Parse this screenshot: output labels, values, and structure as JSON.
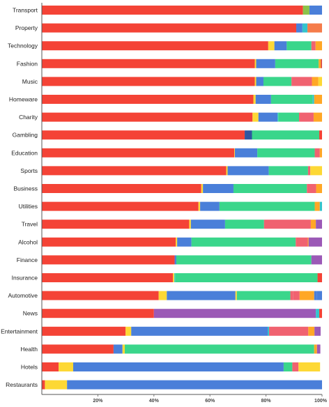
{
  "chart_data": {
    "type": "bar",
    "orientation": "horizontal",
    "stacked": true,
    "title": "",
    "xlabel": "",
    "ylabel": "",
    "xlim": [
      0,
      100
    ],
    "x_ticks": [
      {
        "value": 20,
        "label": "20%"
      },
      {
        "value": 40,
        "label": "40%"
      },
      {
        "value": 60,
        "label": "60%"
      },
      {
        "value": 80,
        "label": "80%"
      },
      {
        "value": 100,
        "label": "100%"
      }
    ],
    "grid": false,
    "legend": "none",
    "colors": [
      "#f44336",
      "#fdd835",
      "#8bc34a",
      "#4a7fd9",
      "#2f56a0",
      "#3ad68b",
      "#33c4cc",
      "#f06270",
      "#ffa726",
      "#9b59b6",
      "#f57c4a",
      "#d84343"
    ],
    "categories": [
      "Transport",
      "Property",
      "Technology",
      "Fashion",
      "Music",
      "Homeware",
      "Charity",
      "Gambling",
      "Education",
      "Sports",
      "Business",
      "Utilities",
      "Travel",
      "Alcohol",
      "Finance",
      "Insurance",
      "Automotive",
      "News",
      "Entertainment",
      "Health",
      "Hotels",
      "Restaurants"
    ],
    "bars": [
      [
        [
          93.2,
          0
        ],
        [
          2.3,
          2
        ],
        [
          4.5,
          3
        ]
      ],
      [
        [
          90.8,
          0
        ],
        [
          2.2,
          3
        ],
        [
          1.8,
          6
        ],
        [
          5.2,
          10
        ]
      ],
      [
        [
          80.8,
          0
        ],
        [
          2.2,
          1
        ],
        [
          4.4,
          3
        ],
        [
          8.8,
          5
        ],
        [
          1.5,
          7
        ],
        [
          2.3,
          8
        ]
      ],
      [
        [
          76.0,
          0
        ],
        [
          0.5,
          1
        ],
        [
          6.8,
          3
        ],
        [
          15.5,
          5
        ],
        [
          0.8,
          8
        ],
        [
          0.4,
          11
        ]
      ],
      [
        [
          76.0,
          0
        ],
        [
          0.5,
          1
        ],
        [
          2.6,
          3
        ],
        [
          10.0,
          5
        ],
        [
          7.3,
          7
        ],
        [
          2.3,
          8
        ],
        [
          1.3,
          1
        ]
      ],
      [
        [
          75.5,
          0
        ],
        [
          0.8,
          1
        ],
        [
          5.5,
          3
        ],
        [
          14.8,
          5
        ],
        [
          0.6,
          6
        ],
        [
          2.8,
          8
        ]
      ],
      [
        [
          75.2,
          0
        ],
        [
          2.1,
          1
        ],
        [
          6.8,
          3
        ],
        [
          0.3,
          6
        ],
        [
          7.4,
          5
        ],
        [
          5.2,
          7
        ],
        [
          3.0,
          8
        ]
      ],
      [
        [
          72.4,
          0
        ],
        [
          2.6,
          4
        ],
        [
          24.0,
          5
        ],
        [
          1.0,
          0
        ]
      ],
      [
        [
          68.7,
          0
        ],
        [
          0.2,
          1
        ],
        [
          8.0,
          3
        ],
        [
          20.5,
          5
        ],
        [
          1.8,
          7
        ],
        [
          0.8,
          8
        ]
      ],
      [
        [
          65.8,
          0
        ],
        [
          0.5,
          1
        ],
        [
          14.7,
          3
        ],
        [
          14.0,
          5
        ],
        [
          0.8,
          7
        ],
        [
          4.2,
          1
        ]
      ],
      [
        [
          56.9,
          0
        ],
        [
          0.6,
          1
        ],
        [
          10.9,
          3
        ],
        [
          26.2,
          5
        ],
        [
          3.3,
          7
        ],
        [
          2.1,
          8
        ]
      ],
      [
        [
          55.9,
          0
        ],
        [
          0.6,
          1
        ],
        [
          6.9,
          3
        ],
        [
          34.0,
          5
        ],
        [
          1.8,
          8
        ],
        [
          0.8,
          6
        ]
      ],
      [
        [
          52.6,
          0
        ],
        [
          0.6,
          1
        ],
        [
          12.2,
          3
        ],
        [
          13.9,
          5
        ],
        [
          16.7,
          7
        ],
        [
          1.8,
          8
        ],
        [
          2.2,
          9
        ]
      ],
      [
        [
          47.8,
          0
        ],
        [
          0.5,
          1
        ],
        [
          5.1,
          3
        ],
        [
          37.2,
          5
        ],
        [
          4.3,
          7
        ],
        [
          0.3,
          8
        ],
        [
          4.8,
          9
        ]
      ],
      [
        [
          47.4,
          0
        ],
        [
          0.6,
          3
        ],
        [
          48.2,
          5
        ],
        [
          3.8,
          9
        ]
      ],
      [
        [
          46.8,
          0
        ],
        [
          0.5,
          1
        ],
        [
          0.3,
          6
        ],
        [
          50.8,
          5
        ],
        [
          1.6,
          0
        ]
      ],
      [
        [
          41.7,
          0
        ],
        [
          2.9,
          1
        ],
        [
          24.5,
          3
        ],
        [
          0.5,
          1
        ],
        [
          19.1,
          5
        ],
        [
          0.9,
          7
        ],
        [
          2.4,
          7
        ],
        [
          5.2,
          8
        ],
        [
          0.9,
          3
        ],
        [
          1.9,
          3
        ]
      ],
      [
        [
          40.0,
          0
        ],
        [
          57.8,
          9
        ],
        [
          1.2,
          6
        ],
        [
          1.0,
          0
        ]
      ],
      [
        [
          29.9,
          0
        ],
        [
          2.0,
          1
        ],
        [
          48.7,
          3
        ],
        [
          0.5,
          6
        ],
        [
          14.0,
          7
        ],
        [
          2.2,
          8
        ],
        [
          2.2,
          9
        ]
      ],
      [
        [
          25.6,
          0
        ],
        [
          3.2,
          3
        ],
        [
          0.8,
          1
        ],
        [
          67.6,
          5
        ],
        [
          1.0,
          8
        ],
        [
          1.2,
          9
        ]
      ],
      [
        [
          6.0,
          0
        ],
        [
          5.2,
          1
        ],
        [
          75.1,
          3
        ],
        [
          3.1,
          5
        ],
        [
          2.2,
          7
        ],
        [
          7.7,
          1
        ]
      ],
      [
        [
          1.1,
          0
        ],
        [
          7.9,
          1
        ],
        [
          91.0,
          3
        ]
      ]
    ]
  }
}
